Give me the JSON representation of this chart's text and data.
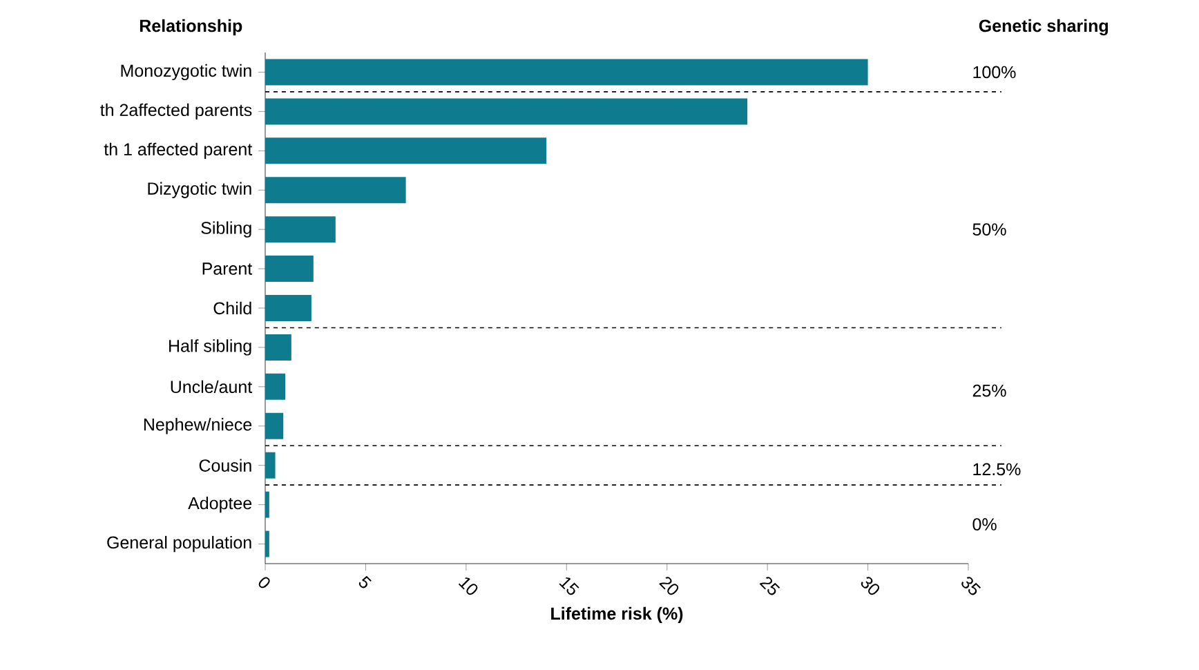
{
  "chart_data": {
    "type": "bar",
    "orientation": "horizontal",
    "ylabel": "Relationship",
    "xlabel": "Lifetime risk (%)",
    "categories": [
      "Monozygotic twin",
      "th 2affected parents",
      "th 1 affected parent",
      "Dizygotic twin",
      "Sibling",
      "Parent",
      "Child",
      "Half sibling",
      "Uncle/aunt",
      "Nephew/niece",
      "Cousin",
      "Adoptee",
      "General population"
    ],
    "values": [
      30,
      24,
      14,
      7,
      3.5,
      2.4,
      2.3,
      1.3,
      1.0,
      0.9,
      0.5,
      0.2,
      0.2
    ],
    "color": "#0e7c8e",
    "xlim": [
      0,
      35
    ],
    "xticks": [
      0,
      5,
      10,
      15,
      20,
      25,
      30,
      35
    ],
    "annotations": [
      "Genetic sharing",
      "100%",
      "50%",
      "25%",
      "12.5%",
      "0%"
    ]
  }
}
